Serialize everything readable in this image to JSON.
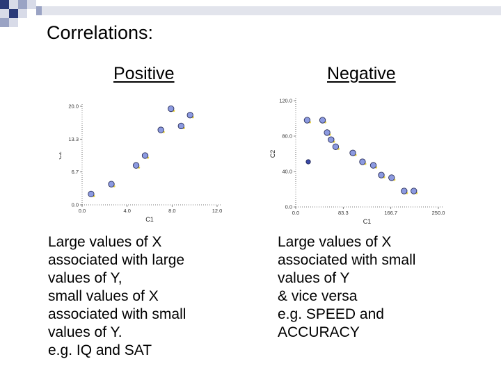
{
  "slide": {
    "title": "Correlations:",
    "accent_colors": [
      "#2a3a78",
      "#9aa3c4",
      "#d8dbe8"
    ]
  },
  "positive": {
    "heading": "Positive",
    "description": [
      "Large values of X associated with large values of Y,",
      "small values of X associated with small values of Y.",
      "e.g. IQ and SAT"
    ]
  },
  "negative": {
    "heading": "Negative",
    "description": [
      "Large values of X associated with small values of Y",
      "& vice versa",
      "e.g. SPEED and ACCURACY"
    ]
  },
  "chart_data": [
    {
      "type": "scatter",
      "title": "Positive",
      "xlabel": "C1",
      "ylabel": "C2",
      "xlim": [
        0,
        12
      ],
      "ylim": [
        0,
        20
      ],
      "xticks": [
        "0.0",
        "4.0",
        "8.0",
        "12.0"
      ],
      "yticks": [
        "0.0",
        "6.7",
        "13.3",
        "20.0"
      ],
      "x": [
        0.8,
        2.6,
        4.8,
        5.6,
        7.0,
        7.9,
        8.8,
        9.6
      ],
      "y": [
        2.2,
        4.2,
        8.0,
        10.0,
        15.2,
        19.5,
        16.0,
        18.2
      ],
      "point_color": "#8c9ae0",
      "highlight_color": "#e8d44a"
    },
    {
      "type": "scatter",
      "title": "Negative",
      "xlabel": "C1",
      "ylabel": "C2",
      "xlim": [
        0,
        250
      ],
      "ylim": [
        0,
        120
      ],
      "xticks": [
        "0.0",
        "83.3",
        "166.7",
        "250.0"
      ],
      "yticks": [
        "0.0",
        "40.0",
        "80.0",
        "120.0"
      ],
      "x": [
        20,
        47,
        62,
        55,
        70,
        100,
        117,
        136,
        150,
        168,
        190,
        207
      ],
      "y": [
        98,
        98,
        76,
        84,
        68,
        61,
        51,
        47,
        36,
        33,
        18,
        18
      ],
      "x2": [
        22
      ],
      "y2": [
        51
      ],
      "point_color": "#8c9ae0",
      "highlight_color": "#e8d44a"
    }
  ]
}
